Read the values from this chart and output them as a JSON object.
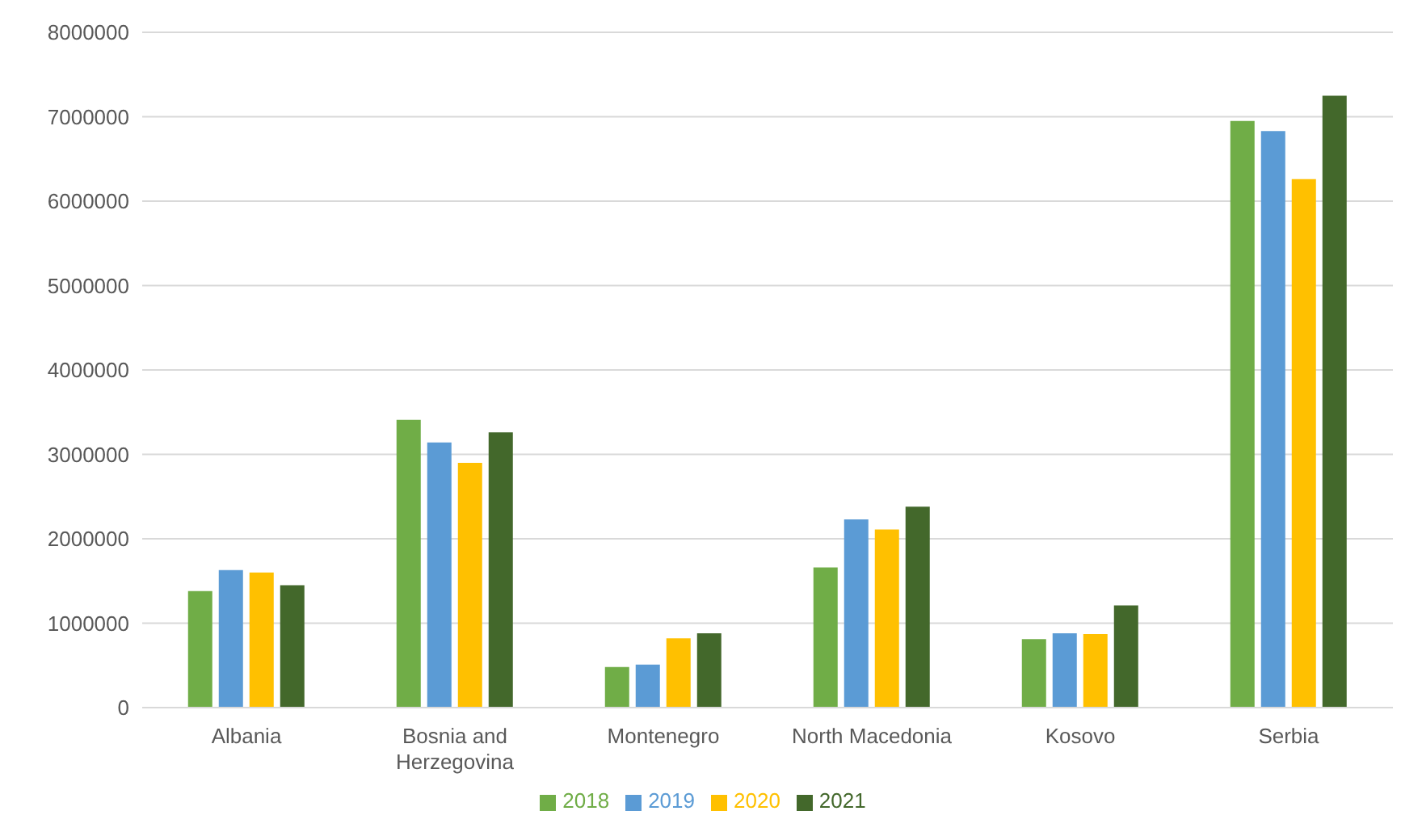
{
  "chart_data": {
    "type": "bar",
    "categories": [
      "Albania",
      "Bosnia and Herzegovina",
      "Montenegro",
      "North Macedonia",
      "Kosovo",
      "Serbia"
    ],
    "series": [
      {
        "name": "2018",
        "color": "#70ad47",
        "values": [
          1380000,
          3410000,
          480000,
          1660000,
          810000,
          6950000
        ]
      },
      {
        "name": "2019",
        "color": "#5b9bd5",
        "values": [
          1630000,
          3140000,
          510000,
          2230000,
          880000,
          6830000
        ]
      },
      {
        "name": "2020",
        "color": "#ffc000",
        "values": [
          1600000,
          2900000,
          820000,
          2110000,
          870000,
          6260000
        ]
      },
      {
        "name": "2021",
        "color": "#43682b",
        "values": [
          1450000,
          3260000,
          880000,
          2380000,
          1210000,
          7250000
        ]
      }
    ],
    "ylim": [
      0,
      8000000
    ],
    "yticks": [
      0,
      1000000,
      2000000,
      3000000,
      4000000,
      5000000,
      6000000,
      7000000,
      8000000
    ],
    "grid": "y",
    "legend": "bottom"
  }
}
